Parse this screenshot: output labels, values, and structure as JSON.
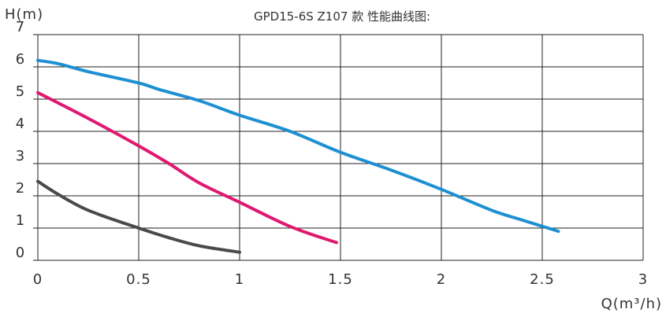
{
  "chart_data": {
    "type": "line",
    "title": "GPD15-6S  Z107 款   性能曲线图:",
    "ylabel": "H(m)",
    "xlabel": "Q(m³/h)",
    "xlim": [
      0,
      3
    ],
    "ylim": [
      0,
      7
    ],
    "xticks": [
      "0",
      "0.5",
      "1",
      "1.5",
      "2",
      "2.5",
      "3"
    ],
    "yticks": [
      "0",
      "1",
      "2",
      "3",
      "4",
      "5",
      "6",
      "7"
    ],
    "grid": true,
    "series": [
      {
        "color": "#1e90d2",
        "x": [
          0,
          0.1,
          0.25,
          0.5,
          0.6,
          0.8,
          1.0,
          1.25,
          1.5,
          1.75,
          2.0,
          2.25,
          2.4,
          2.58
        ],
        "y": [
          6.2,
          6.1,
          5.85,
          5.5,
          5.3,
          4.95,
          4.5,
          4.0,
          3.35,
          2.8,
          2.2,
          1.55,
          1.25,
          0.9
        ]
      },
      {
        "color": "#e0196e",
        "x": [
          0,
          0.25,
          0.5,
          0.65,
          0.8,
          1.0,
          1.25,
          1.48
        ],
        "y": [
          5.2,
          4.4,
          3.55,
          3.0,
          2.4,
          1.8,
          1.05,
          0.55
        ]
      },
      {
        "color": "#4a4a4a",
        "x": [
          0,
          0.1,
          0.25,
          0.5,
          0.65,
          0.8,
          1.0
        ],
        "y": [
          2.45,
          2.05,
          1.55,
          1.0,
          0.7,
          0.45,
          0.25
        ]
      }
    ]
  }
}
